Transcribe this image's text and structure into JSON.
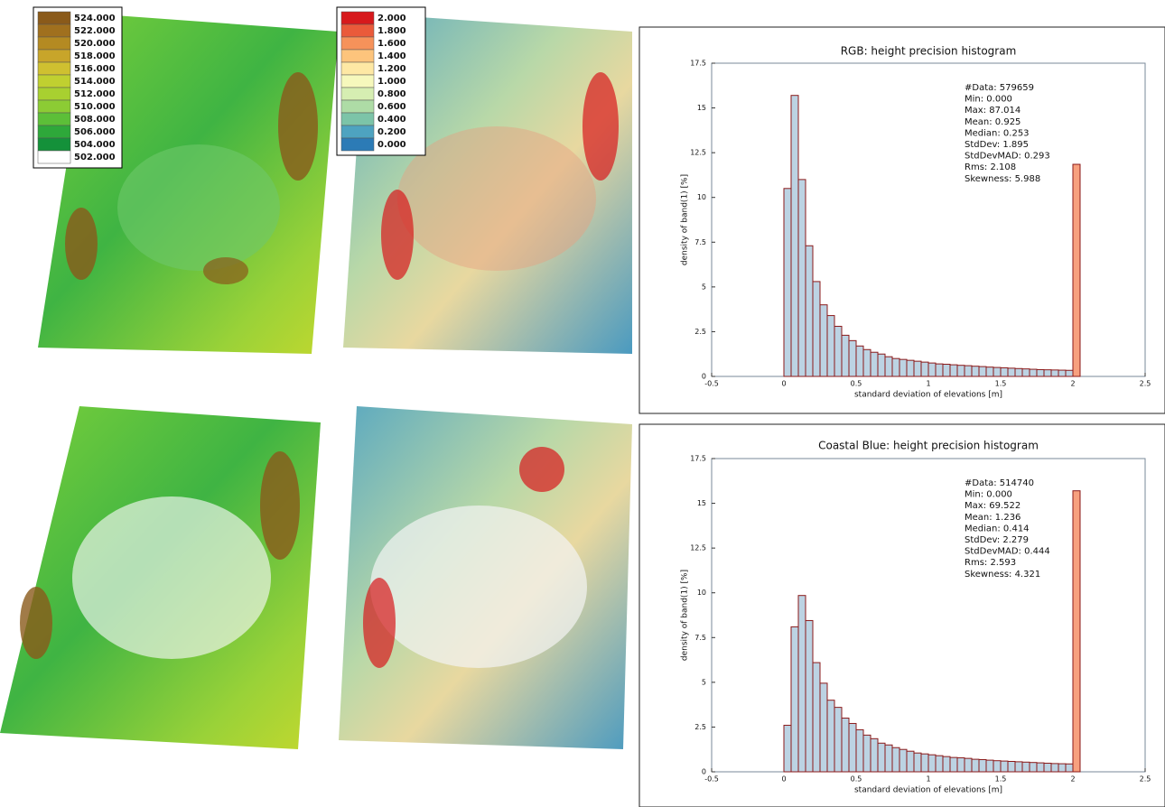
{
  "legends": [
    {
      "labels": [
        "524.000",
        "522.000",
        "520.000",
        "518.000",
        "516.000",
        "514.000",
        "512.000",
        "510.000",
        "508.000",
        "506.000",
        "504.000",
        "502.000"
      ],
      "colors": [
        "#8a5a1a",
        "#a0701e",
        "#b48a22",
        "#c8a52a",
        "#cfc030",
        "#c0d030",
        "#a8d030",
        "#8ccc34",
        "#5cbf38",
        "#2ea83a",
        "#14913a",
        "#ffffff"
      ]
    },
    {
      "labels": [
        "2.000",
        "1.800",
        "1.600",
        "1.400",
        "1.200",
        "1.000",
        "0.800",
        "0.600",
        "0.400",
        "0.200",
        "0.000"
      ],
      "colors": [
        "#d7191c",
        "#ea5a3a",
        "#f6925a",
        "#fdc47c",
        "#fee8a4",
        "#f6f8bc",
        "#d6eeb2",
        "#aedca6",
        "#7cc4a8",
        "#4ea3c0",
        "#2c7bb6"
      ]
    }
  ],
  "chart_data": [
    {
      "type": "histogram",
      "title": "RGB: height precision histogram",
      "x_label": "standard deviation of elevations [m]",
      "y_label": "density of band(1) [%]",
      "xlim": [
        -0.5,
        2.5
      ],
      "ylim": [
        0,
        17.5
      ],
      "xticks": [
        -0.5,
        0,
        0.5,
        1,
        1.5,
        2,
        2.5
      ],
      "yticks": [
        0,
        2.5,
        5,
        7.5,
        10,
        12.5,
        15,
        17.5
      ],
      "stats": [
        "#Data: 579659",
        "Min: 0.000",
        "Max: 87.014",
        "Mean: 0.925",
        "Median: 0.253",
        "StdDev: 1.895",
        "StdDevMAD: 0.293",
        "Rms: 2.108",
        "Skewness: 5.988"
      ],
      "series": [
        {
          "color": "#bcd3e3",
          "bins": [
            0,
            0.05,
            0.1,
            0.15,
            0.2,
            0.25,
            0.3,
            0.35,
            0.4,
            0.45,
            0.5,
            0.55,
            0.6,
            0.65,
            0.7,
            0.75,
            0.8,
            0.85,
            0.9,
            0.95,
            1,
            1.05,
            1.1,
            1.15,
            1.2,
            1.25,
            1.3,
            1.35,
            1.4,
            1.45,
            1.5,
            1.55,
            1.6,
            1.65,
            1.7,
            1.75,
            1.8,
            1.85,
            1.9,
            1.95,
            2
          ],
          "values": [
            10.5,
            15.7,
            11.0,
            7.3,
            5.3,
            4.0,
            3.4,
            2.8,
            2.3,
            2.0,
            1.7,
            1.5,
            1.35,
            1.25,
            1.1,
            1.0,
            0.95,
            0.9,
            0.85,
            0.8,
            0.75,
            0.7,
            0.68,
            0.65,
            0.62,
            0.6,
            0.57,
            0.55,
            0.52,
            0.5,
            0.48,
            0.46,
            0.44,
            0.42,
            0.4,
            0.38,
            0.37,
            0.36,
            0.35,
            0.34
          ]
        },
        {
          "color": "#f7a07e",
          "bins": [
            2,
            2.05
          ],
          "values": [
            11.85
          ]
        }
      ]
    },
    {
      "type": "histogram",
      "title": "Coastal Blue: height precision histogram",
      "x_label": "standard deviation of elevations [m]",
      "y_label": "density of band(1) [%]",
      "xlim": [
        -0.5,
        2.5
      ],
      "ylim": [
        0,
        17.5
      ],
      "xticks": [
        -0.5,
        0,
        0.5,
        1,
        1.5,
        2,
        2.5
      ],
      "yticks": [
        0,
        2.5,
        5,
        7.5,
        10,
        12.5,
        15,
        17.5
      ],
      "stats": [
        "#Data: 514740",
        "Min: 0.000",
        "Max: 69.522",
        "Mean: 1.236",
        "Median: 0.414",
        "StdDev: 2.279",
        "StdDevMAD: 0.444",
        "Rms: 2.593",
        "Skewness: 4.321"
      ],
      "series": [
        {
          "color": "#bcd3e3",
          "bins": [
            0,
            0.05,
            0.1,
            0.15,
            0.2,
            0.25,
            0.3,
            0.35,
            0.4,
            0.45,
            0.5,
            0.55,
            0.6,
            0.65,
            0.7,
            0.75,
            0.8,
            0.85,
            0.9,
            0.95,
            1,
            1.05,
            1.1,
            1.15,
            1.2,
            1.25,
            1.3,
            1.35,
            1.4,
            1.45,
            1.5,
            1.55,
            1.6,
            1.65,
            1.7,
            1.75,
            1.8,
            1.85,
            1.9,
            1.95,
            2
          ],
          "values": [
            2.6,
            8.1,
            9.85,
            8.45,
            6.1,
            4.95,
            4.0,
            3.6,
            3.0,
            2.7,
            2.35,
            2.05,
            1.85,
            1.6,
            1.5,
            1.35,
            1.25,
            1.15,
            1.05,
            1.0,
            0.95,
            0.9,
            0.85,
            0.8,
            0.78,
            0.75,
            0.7,
            0.68,
            0.65,
            0.62,
            0.6,
            0.58,
            0.56,
            0.54,
            0.52,
            0.5,
            0.48,
            0.46,
            0.45,
            0.44
          ]
        },
        {
          "color": "#f7a07e",
          "bins": [
            2,
            2.05
          ],
          "values": [
            15.7
          ]
        }
      ]
    }
  ]
}
